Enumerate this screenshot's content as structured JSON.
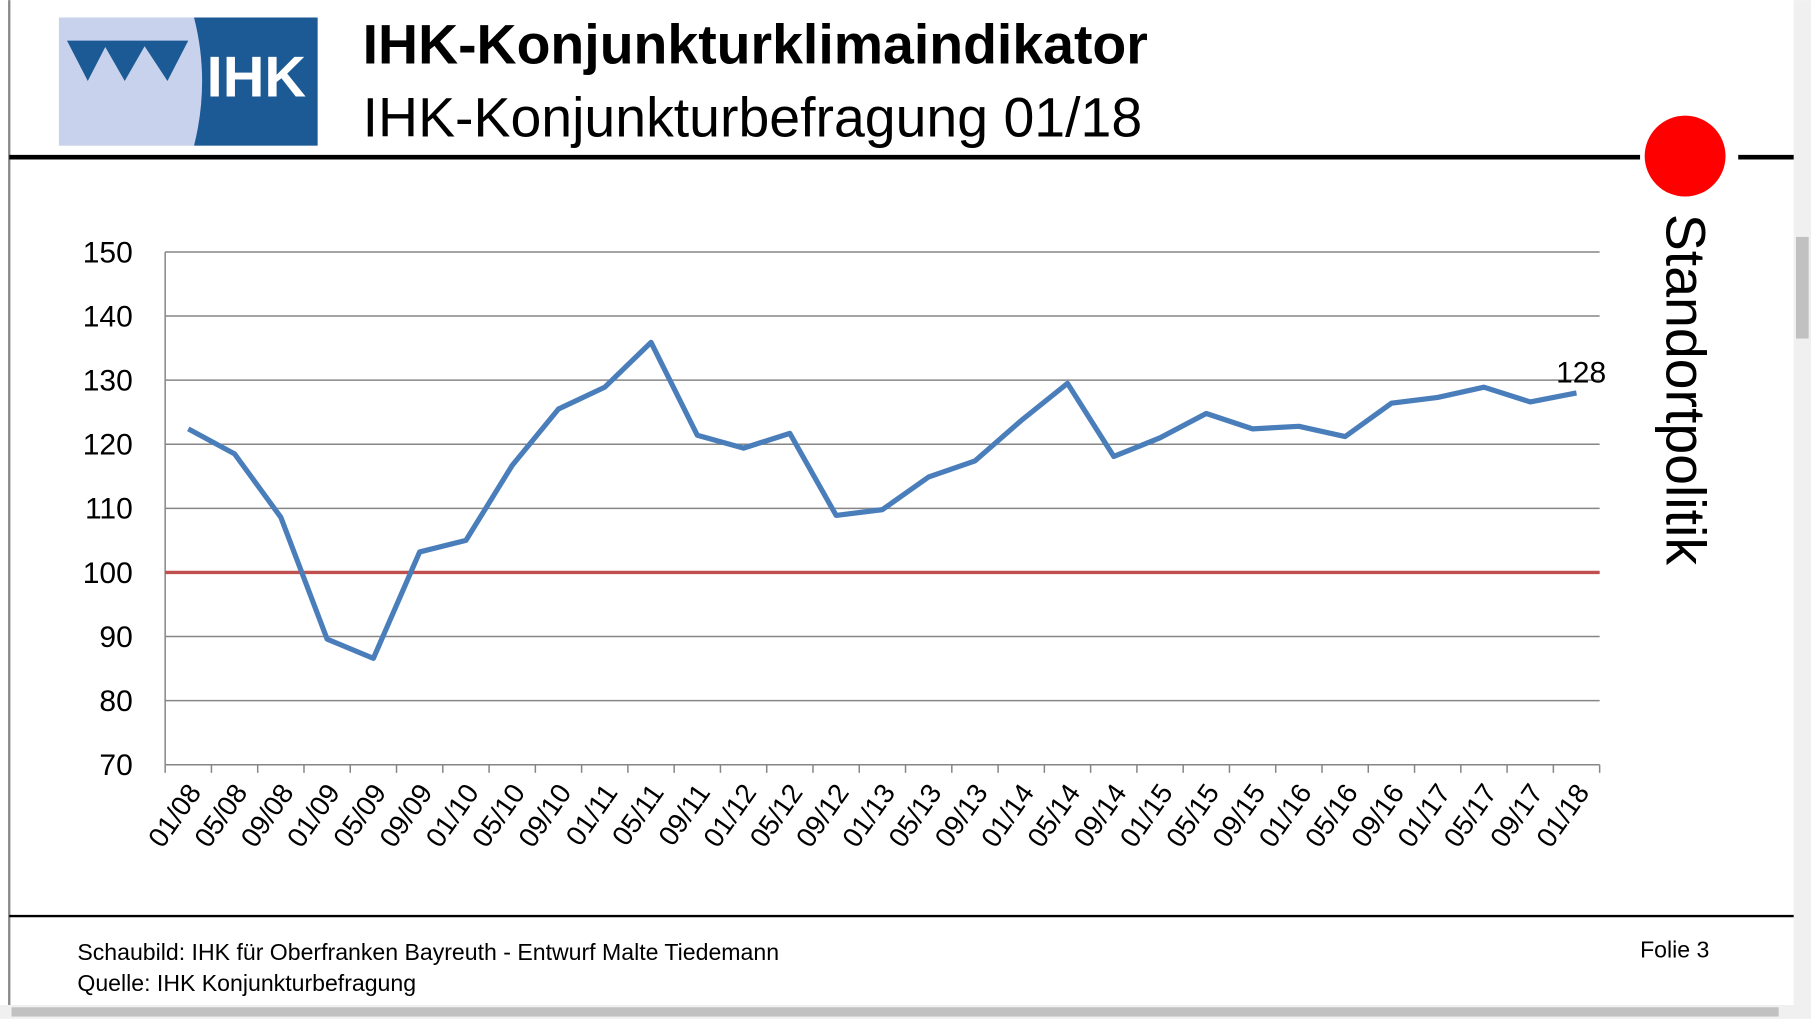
{
  "page": {
    "logo_text": "IHK",
    "side_label": "Standortpolitik",
    "footer": [
      "Schaubild: IHK für Oberfranken Bayreuth - Entwurf Malte Tiedemann",
      "Quelle: IHK Konjunkturbefragung"
    ],
    "slide_number": "Folie 3"
  },
  "chart_data": {
    "type": "line",
    "title": "IHK-Konjunkturklimaindikator",
    "subtitle": "IHK-Konjunkturbefragung 01/18",
    "categories": [
      "01/08",
      "05/08",
      "09/08",
      "01/09",
      "05/09",
      "09/09",
      "01/10",
      "05/10",
      "09/10",
      "01/11",
      "05/11",
      "09/11",
      "01/12",
      "05/12",
      "09/12",
      "01/13",
      "05/13",
      "09/13",
      "01/14",
      "05/14",
      "09/14",
      "01/15",
      "05/15",
      "09/15",
      "01/16",
      "05/16",
      "09/16",
      "01/17",
      "05/17",
      "09/17",
      "01/18"
    ],
    "values": [
      122.4,
      118.5,
      108.6,
      89.6,
      86.6,
      103.2,
      105,
      116.7,
      125.5,
      128.9,
      135.9,
      121.4,
      119.4,
      121.7,
      108.9,
      109.8,
      114.9,
      117.4,
      123.7,
      129.5,
      118.1,
      121,
      124.8,
      122.4,
      122.8,
      121.2,
      126.4,
      127.3,
      128.9,
      126.6,
      128
    ],
    "color": "#4a7ebb",
    "reference_line": 100,
    "reference_color": "#c0504d",
    "ylim": [
      70,
      150
    ],
    "yticks": [
      70,
      80,
      90,
      100,
      110,
      120,
      130,
      140,
      150
    ],
    "grid": true
  }
}
